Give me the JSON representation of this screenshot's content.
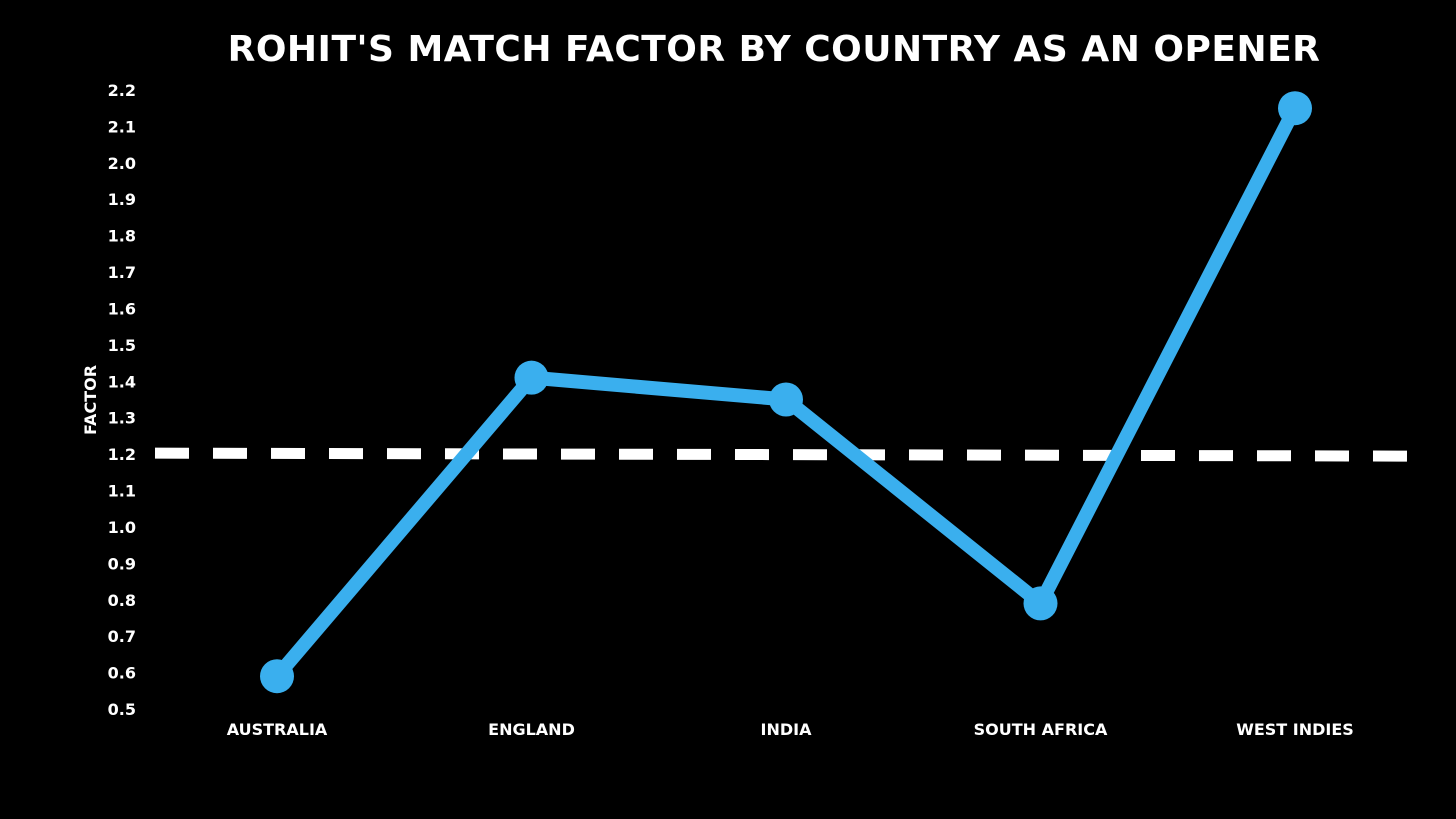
{
  "chart_data": {
    "type": "line",
    "title": "ROHIT'S MATCH FACTOR BY COUNTRY AS AN OPENER",
    "xlabel": "",
    "ylabel": "FACTOR",
    "categories": [
      "AUSTRALIA",
      "ENGLAND",
      "INDIA",
      "SOUTH AFRICA",
      "WEST INDIES"
    ],
    "series": [
      {
        "values": [
          0.59,
          1.41,
          1.35,
          0.79,
          2.15
        ],
        "color": "#3aafee"
      }
    ],
    "reference_line": {
      "value": 1.2,
      "style": "dashed",
      "color": "#ffffff"
    },
    "y_ticks": [
      "0.5",
      "0.6",
      "0.7",
      "0.8",
      "0.9",
      "1.0",
      "1.1",
      "1.2",
      "1.3",
      "1.4",
      "1.5",
      "1.6",
      "1.7",
      "1.8",
      "1.9",
      "2.0",
      "2.1",
      "2.2"
    ],
    "ylim": [
      0.5,
      2.2
    ],
    "grid": false,
    "legend": "none",
    "background": "#000000"
  }
}
